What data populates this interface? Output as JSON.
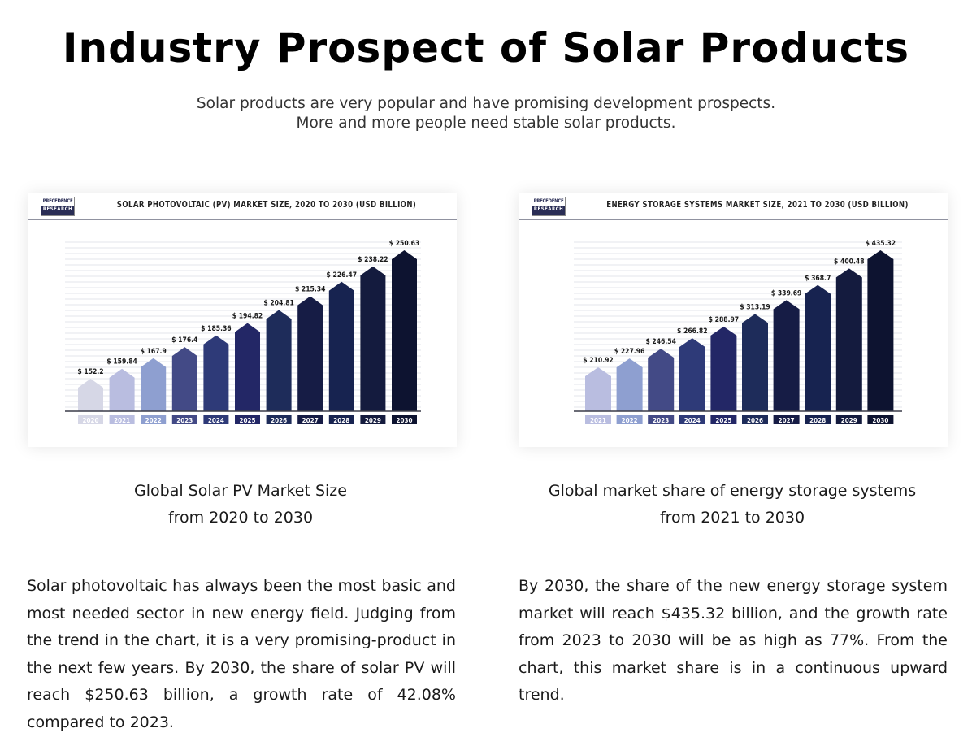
{
  "header": {
    "title": "Industry Prospect of Solar Products",
    "subtitle_line1": "Solar products are very popular and have promising development prospects.",
    "subtitle_line2": "More and more people need stable solar products."
  },
  "logo": {
    "line1": "PRECEDENCE",
    "line2": "RESEARCH"
  },
  "left": {
    "caption_line1": "Global Solar PV Market Size",
    "caption_line2": "from 2020 to 2030",
    "paragraph": "Solar photovoltaic has always been the most basic and most needed sector in new energy field. Judging from the trend in the chart, it is a very promising-product in the next few years. By 2030, the share of solar PV will reach $250.63 billion, a growth rate of 42.08% compared to 2023."
  },
  "right": {
    "caption_line1": "Global market share of energy storage systems",
    "caption_line2": "from 2021 to 2030",
    "paragraph": "By 2030, the share of the new energy storage system market will reach $435.32 billion, and the growth rate from 2023 to 2030 will be as high as 77%. From the chart, this market share is in a continuous upward trend."
  },
  "chart_data": [
    {
      "type": "bar",
      "title": "SOLAR PHOTOVOLTAIC (PV) MARKET SIZE, 2020 TO 2030 (USD BILLION)",
      "xlabel": "",
      "ylabel": "USD Billion",
      "categories": [
        "2020",
        "2021",
        "2022",
        "2023",
        "2024",
        "2025",
        "2026",
        "2027",
        "2028",
        "2029",
        "2030"
      ],
      "values": [
        152.2,
        159.84,
        167.9,
        176.4,
        185.36,
        194.82,
        204.81,
        215.34,
        226.47,
        238.22,
        250.63
      ],
      "data_labels": [
        "$ 152.2",
        "$ 159.84",
        "$ 167.9",
        "$ 176.4",
        "$ 185.36",
        "$ 194.82",
        "$ 204.81",
        "$ 215.34",
        "$ 226.47",
        "$ 238.22",
        "$ 250.63"
      ],
      "colors": [
        "#d6d7e6",
        "#b9bde0",
        "#8e9fd0",
        "#434a86",
        "#2e3a78",
        "#232766",
        "#1e2c5a",
        "#161c45",
        "#172350",
        "#141b3e",
        "#0d1330"
      ],
      "grid": true,
      "legend": "none"
    },
    {
      "type": "bar",
      "title": "ENERGY STORAGE SYSTEMS MARKET SIZE, 2021 TO 2030 (USD BILLION)",
      "xlabel": "",
      "ylabel": "USD Billion",
      "categories": [
        "2021",
        "2022",
        "2023",
        "2024",
        "2025",
        "2026",
        "2027",
        "2028",
        "2029",
        "2030"
      ],
      "values": [
        210.92,
        227.96,
        246.54,
        266.82,
        288.97,
        313.19,
        339.69,
        368.7,
        400.48,
        435.32
      ],
      "data_labels": [
        "$ 210.92",
        "$ 227.96",
        "$ 246.54",
        "$ 266.82",
        "$ 288.97",
        "$ 313.19",
        "$ 339.69",
        "$ 368.7",
        "$ 400.48",
        "$ 435.32"
      ],
      "colors": [
        "#b9bde0",
        "#8e9fd0",
        "#434a86",
        "#2e3a78",
        "#232766",
        "#1e2c5a",
        "#161c45",
        "#172350",
        "#141b3e",
        "#0d1330"
      ],
      "grid": true,
      "legend": "none"
    }
  ]
}
